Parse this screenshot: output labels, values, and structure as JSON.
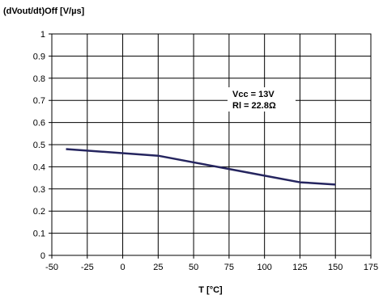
{
  "chart_data": {
    "type": "line",
    "title": "",
    "ylabel": "(dVout/dt)Off [V/µs]",
    "xlabel": "T [°C]",
    "xlim": [
      -50,
      175
    ],
    "ylim": [
      0,
      1
    ],
    "x_ticks": [
      "-50",
      "-25",
      "0",
      "25",
      "50",
      "75",
      "100",
      "125",
      "150",
      "175"
    ],
    "y_ticks": [
      "0",
      "0.1",
      "0.2",
      "0.3",
      "0.4",
      "0.5",
      "0.6",
      "0.7",
      "0.8",
      "0.9",
      "1"
    ],
    "grid": true,
    "series": [
      {
        "x": [
          -40,
          25,
          50,
          75,
          100,
          125,
          150
        ],
        "y": [
          0.48,
          0.45,
          0.42,
          0.39,
          0.36,
          0.33,
          0.32
        ],
        "color": "#25255f"
      }
    ],
    "annotations": [
      "Vcc = 13V",
      "Rl = 22.8Ω"
    ]
  }
}
